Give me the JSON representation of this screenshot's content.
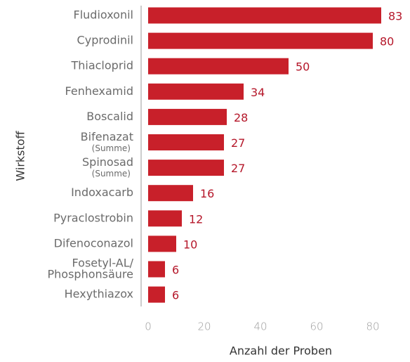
{
  "chart_data": {
    "type": "bar",
    "orientation": "horizontal",
    "categories": [
      "Fludioxonil",
      "Cyprodinil",
      "Thiacloprid",
      "Fenhexamid",
      "Boscalid",
      "Bifenazat",
      "Spinosad",
      "Indoxacarb",
      "Pyraclostrobin",
      "Difenoconazol",
      [
        "Fosetyl-AL/",
        "Phosphonsäure"
      ],
      "Hexythiazox"
    ],
    "category_notes": [
      null,
      null,
      null,
      null,
      null,
      "(Summe)",
      "(Summe)",
      null,
      null,
      null,
      null,
      null
    ],
    "values": [
      83,
      80,
      50,
      34,
      28,
      27,
      27,
      16,
      12,
      10,
      6,
      6
    ],
    "color": "#c8202a",
    "value_label_color": "#b5172a",
    "xlim": [
      0,
      90
    ],
    "xticks": [
      0,
      20,
      40,
      60,
      80
    ],
    "xlabel": "Anzahl der Proben",
    "ylabel": "Wirkstoff"
  }
}
